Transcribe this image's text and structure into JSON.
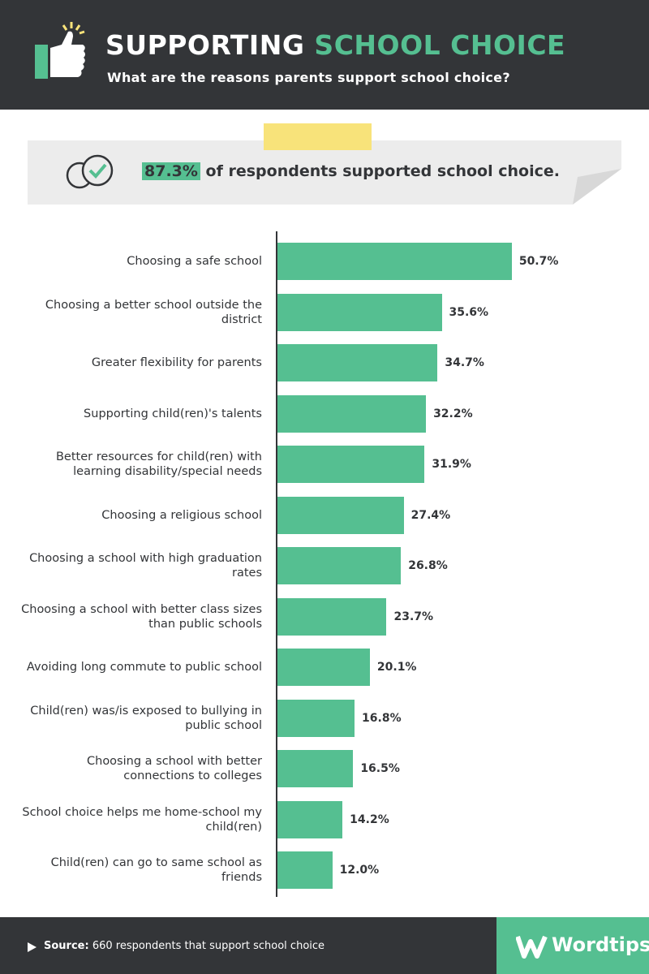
{
  "header": {
    "title": [
      "SUPPORTING",
      "SCHOOL CHOICE"
    ],
    "subtitle": "What are the reasons parents support school choice?"
  },
  "callout": {
    "highlight": "87.3%",
    "text": "of respondents supported school choice."
  },
  "chart_data": {
    "type": "hbar",
    "categories": [
      "Choosing a safe school",
      "Choosing a better school outside the district",
      "Greater flexibility for parents",
      "Supporting child(ren)'s talents",
      "Better resources for child(ren) with learning disability/special needs",
      "Choosing a religious school",
      "Choosing a school with high graduation rates",
      "Choosing a school with better class sizes than public schools",
      "Avoiding long commute to public school",
      "Child(ren) was/is exposed to bullying in public school",
      "Choosing a school with better connections to colleges",
      "School choice helps me home-school my child(ren)",
      "Child(ren) can go to same school as friends"
    ],
    "values": [
      50.7,
      35.6,
      34.7,
      32.2,
      31.9,
      27.4,
      26.8,
      23.7,
      20.1,
      16.8,
      16.5,
      14.2,
      12.0
    ],
    "value_labels": [
      "50.7%",
      "35.6%",
      "34.7%",
      "32.2%",
      "31.9%",
      "27.4%",
      "26.8%",
      "23.7%",
      "20.1%",
      "16.8%",
      "16.5%",
      "14.2%",
      "12.0%"
    ],
    "color": "#55bf91",
    "xlim": [
      0,
      60
    ]
  },
  "footer": {
    "source_label": "Source:",
    "source": "660 respondents that support school choice",
    "brand": "Wordtips"
  }
}
